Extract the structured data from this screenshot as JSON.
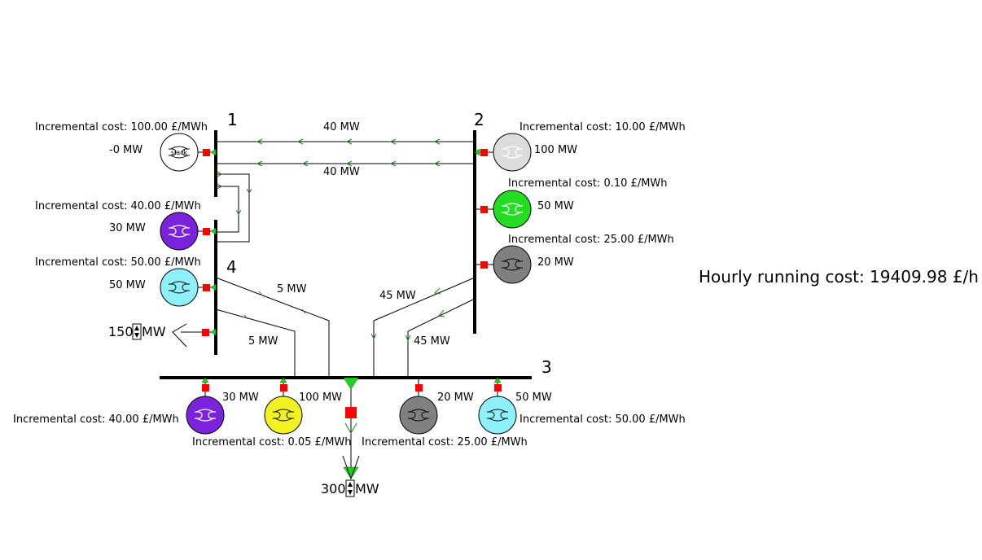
{
  "buses": {
    "bus1": {
      "label": "1"
    },
    "bus2": {
      "label": "2"
    },
    "bus3": {
      "label": "3"
    },
    "bus4": {
      "label": "4"
    }
  },
  "generators": {
    "g1": {
      "cost": "Incremental cost: 100.00 £/MWh",
      "output": "-0 MW",
      "color": "#ffffff",
      "tag": "slack"
    },
    "g2a": {
      "cost": "Incremental cost: 10.00 £/MWh",
      "output": "100 MW",
      "color": "#dcdcdc"
    },
    "g2b": {
      "cost": "Incremental cost: 0.10 £/MWh",
      "output": "50 MW",
      "color": "#22dd22"
    },
    "g2c": {
      "cost": "Incremental cost: 25.00 £/MWh",
      "output": "20 MW",
      "color": "#808080"
    },
    "g4a": {
      "cost": "Incremental cost: 40.00 £/MWh",
      "output": "30 MW",
      "color": "#7b22dd"
    },
    "g4b": {
      "cost": "Incremental cost: 50.00 £/MWh",
      "output": "50 MW",
      "color": "#8ef0f8"
    },
    "g3a": {
      "cost": "Incremental cost: 40.00 £/MWh",
      "output": "30 MW",
      "color": "#7b22dd"
    },
    "g3b": {
      "cost": "Incremental cost: 0.05 £/MWh",
      "output": "100 MW",
      "color": "#f2f222"
    },
    "g3c": {
      "cost": "Incremental cost: 25.00 £/MWh",
      "output": "20 MW",
      "color": "#808080"
    },
    "g3d": {
      "cost": "Incremental cost: 50.00 £/MWh",
      "output": "50 MW",
      "color": "#8ef0f8"
    }
  },
  "lines": {
    "l12a": "40 MW",
    "l12b": "40 MW",
    "l43a": "5 MW",
    "l43b": "5 MW",
    "l23a": "45 MW",
    "l23b": "45 MW"
  },
  "loads": {
    "load4": {
      "value": "150",
      "unit": "MW"
    },
    "load3": {
      "value": "300",
      "unit": "MW"
    }
  },
  "summary": {
    "hourly_cost": "Hourly running cost: 19409.98 £/h"
  },
  "colors": {
    "breaker": "#ff0000",
    "arrow": "#1ed31e"
  }
}
